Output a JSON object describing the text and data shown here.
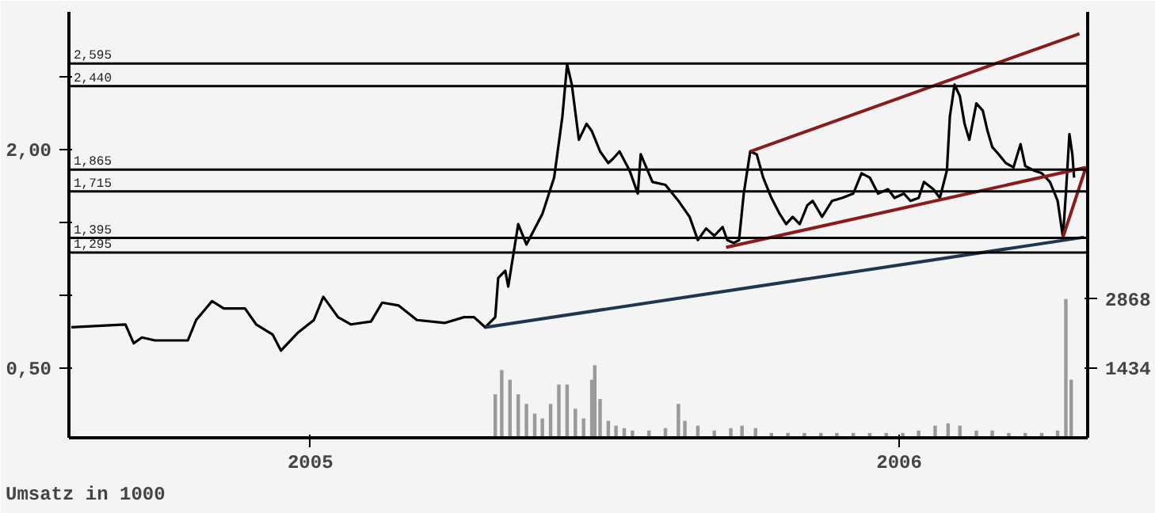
{
  "chart_data": {
    "type": "line",
    "annotations": [
      "Umsatz in 1000"
    ],
    "xlim": [
      2004.59,
      2006.32
    ],
    "xticks": [
      2005,
      2006
    ],
    "ylim": [
      0.02,
      2.95
    ],
    "yticks": [
      {
        "value": 0.5,
        "label": "0,50"
      },
      {
        "value": 1.0,
        "label": null
      },
      {
        "value": 1.5,
        "label": null
      },
      {
        "value": 2.0,
        "label": "2,00"
      },
      {
        "value": 2.5,
        "label": null
      }
    ],
    "y2lim": [
      0,
      8800
    ],
    "y2ticks": [
      1434,
      2868
    ],
    "grid": false,
    "series": [
      {
        "type": "bar",
        "axis": "y2",
        "color": "#9a9a9a",
        "x": [
          2005.314,
          2005.325,
          2005.339,
          2005.353,
          2005.367,
          2005.381,
          2005.394,
          2005.408,
          2005.422,
          2005.436,
          2005.45,
          2005.464,
          2005.478,
          2005.483,
          2005.492,
          2005.506,
          2005.519,
          2005.533,
          2005.547,
          2005.575,
          2005.603,
          2005.625,
          2005.636,
          2005.658,
          2005.686,
          2005.714,
          2005.733,
          2005.756,
          2005.783,
          2005.811,
          2005.839,
          2005.867,
          2005.894,
          2005.922,
          2005.95,
          2005.978,
          2006.006,
          2006.033,
          2006.061,
          2006.083,
          2006.103,
          2006.131,
          2006.158,
          2006.186,
          2006.214,
          2006.242,
          2006.269,
          2006.283,
          2006.292
        ],
        "values": [
          900,
          1400,
          1200,
          900,
          700,
          500,
          400,
          700,
          1100,
          1100,
          600,
          400,
          1200,
          1500,
          800,
          350,
          250,
          200,
          150,
          150,
          200,
          700,
          350,
          250,
          150,
          200,
          250,
          200,
          100,
          100,
          100,
          100,
          100,
          100,
          100,
          100,
          100,
          150,
          250,
          300,
          250,
          150,
          150,
          100,
          100,
          100,
          150,
          2868,
          1200
        ]
      },
      {
        "color": "#000000",
        "x": [
          2004.594,
          2004.686,
          2004.7,
          2004.714,
          2004.736,
          2004.792,
          2004.806,
          2004.833,
          2004.853,
          2004.889,
          2004.908,
          2004.936,
          2004.95,
          2004.978,
          2005.006,
          2005.022,
          2005.047,
          2005.069,
          2005.103,
          2005.122,
          2005.15,
          2005.181,
          2005.228,
          2005.261,
          2005.278,
          2005.297,
          2005.314,
          2005.319,
          2005.331,
          2005.336,
          2005.353,
          2005.367,
          2005.394,
          2005.414,
          2005.428,
          2005.436,
          2005.444,
          2005.456,
          2005.469,
          2005.478,
          2005.492,
          2005.506,
          2005.514,
          2005.525,
          2005.542,
          2005.556,
          2005.561,
          2005.581,
          2005.603,
          2005.625,
          2005.644,
          2005.658,
          2005.672,
          2005.686,
          2005.7,
          2005.708,
          2005.719,
          2005.728,
          2005.736,
          2005.747,
          2005.758,
          2005.769,
          2005.783,
          2005.797,
          2005.808,
          2005.819,
          2005.831,
          2005.844,
          2005.853,
          2005.869,
          2005.886,
          2005.903,
          2005.922,
          2005.936,
          2005.95,
          2005.964,
          2005.981,
          2005.992,
          2006.008,
          2006.019,
          2006.033,
          2006.042,
          2006.058,
          2006.069,
          2006.081,
          2006.086,
          2006.094,
          2006.103,
          2006.111,
          2006.119,
          2006.131,
          2006.142,
          2006.15,
          2006.158,
          2006.169,
          2006.181,
          2006.194,
          2006.206,
          2006.214,
          2006.228,
          2006.242,
          2006.256,
          2006.264,
          2006.269,
          2006.278,
          2006.283,
          2006.289,
          2006.294,
          2006.297
        ],
        "values": [
          0.78,
          0.8,
          0.67,
          0.71,
          0.69,
          0.69,
          0.83,
          0.96,
          0.91,
          0.91,
          0.8,
          0.73,
          0.62,
          0.74,
          0.83,
          0.99,
          0.85,
          0.8,
          0.82,
          0.95,
          0.93,
          0.83,
          0.81,
          0.85,
          0.85,
          0.78,
          0.85,
          1.12,
          1.17,
          1.06,
          1.49,
          1.35,
          1.56,
          1.81,
          2.23,
          2.59,
          2.45,
          2.07,
          2.18,
          2.13,
          1.99,
          1.91,
          1.94,
          1.99,
          1.86,
          1.7,
          1.97,
          1.78,
          1.76,
          1.65,
          1.54,
          1.38,
          1.46,
          1.41,
          1.47,
          1.38,
          1.36,
          1.38,
          1.7,
          1.99,
          1.97,
          1.81,
          1.67,
          1.56,
          1.49,
          1.54,
          1.49,
          1.62,
          1.65,
          1.54,
          1.65,
          1.67,
          1.7,
          1.84,
          1.81,
          1.7,
          1.73,
          1.67,
          1.7,
          1.65,
          1.67,
          1.78,
          1.73,
          1.67,
          1.86,
          2.23,
          2.45,
          2.37,
          2.18,
          2.07,
          2.32,
          2.27,
          2.13,
          2.02,
          1.97,
          1.91,
          1.88,
          2.04,
          1.89,
          1.86,
          1.84,
          1.78,
          1.7,
          1.65,
          1.4,
          1.7,
          2.11,
          1.97,
          1.81
        ]
      },
      {
        "color": "#8b1a1a",
        "x": [
          2005.747,
          2006.306
        ],
        "values": [
          1.99,
          2.8
        ]
      },
      {
        "color": "#8b1a1a",
        "x": [
          2005.706,
          2006.317
        ],
        "values": [
          1.33,
          1.88
        ]
      },
      {
        "color": "#8b1a1a",
        "x": [
          2006.278,
          2006.317
        ],
        "values": [
          1.4,
          1.88
        ]
      },
      {
        "color": "#1f3550",
        "x": [
          2005.297,
          2006.314
        ],
        "values": [
          0.78,
          1.4
        ]
      }
    ],
    "ref_lines": [
      {
        "axis": "y",
        "value": 2.595,
        "label": "2,595"
      },
      {
        "axis": "y",
        "value": 2.44,
        "label": "2,440"
      },
      {
        "axis": "y",
        "value": 1.865,
        "label": "1,865"
      },
      {
        "axis": "y",
        "value": 1.715,
        "label": "1,715"
      },
      {
        "axis": "y",
        "value": 1.395,
        "label": "1,395"
      },
      {
        "axis": "y",
        "value": 1.295,
        "label": "1,295"
      }
    ]
  }
}
